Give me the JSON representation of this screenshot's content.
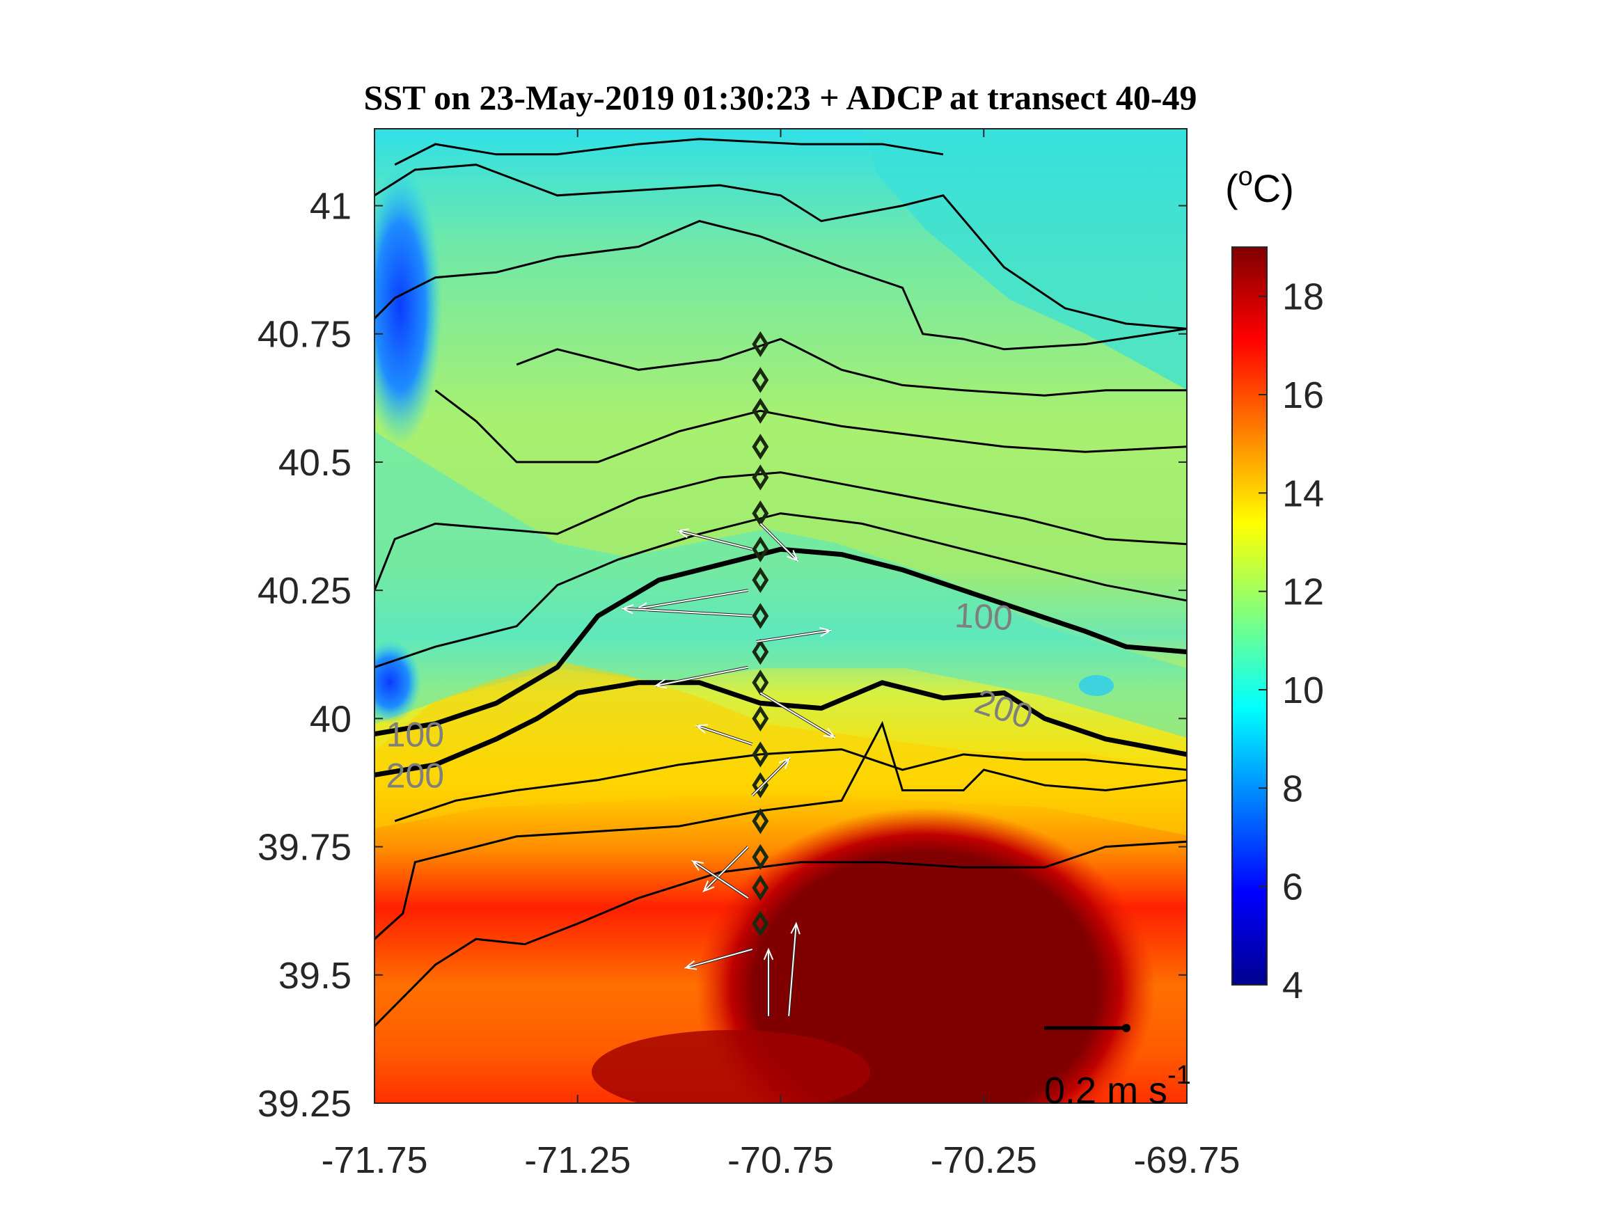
{
  "chart_data": {
    "type": "heatmap",
    "title": "SST on 23-May-2019 01:30:23 + ADCP at transect 40-49",
    "xlim": [
      -71.75,
      -69.75
    ],
    "ylim": [
      39.25,
      41.15
    ],
    "x_ticks": [
      "-71.75",
      "-71.25",
      "-70.75",
      "-70.25",
      "-69.75"
    ],
    "x_tick_values": [
      -71.75,
      -71.25,
      -70.75,
      -70.25,
      -69.75
    ],
    "y_ticks": [
      "39.25",
      "39.5",
      "39.75",
      "40",
      "40.25",
      "40.5",
      "40.75",
      "41"
    ],
    "y_tick_values": [
      39.25,
      39.5,
      39.75,
      40.0,
      40.25,
      40.5,
      40.75,
      41.0
    ],
    "colorbar": {
      "unit_label": "(",
      "unit_sup": "o",
      "unit_end": "C)",
      "clim": [
        4,
        19
      ],
      "ticks": [
        "4",
        "6",
        "8",
        "10",
        "12",
        "14",
        "16",
        "18"
      ],
      "tick_values": [
        4,
        6,
        8,
        10,
        12,
        14,
        16,
        18
      ],
      "colormap": "jet"
    },
    "bathymetry_contours": [
      {
        "label": "100",
        "points": [
          [
            -71.75,
            39.97
          ],
          [
            -71.6,
            39.99
          ],
          [
            -71.45,
            40.03
          ],
          [
            -71.3,
            40.1
          ],
          [
            -71.2,
            40.2
          ],
          [
            -71.05,
            40.27
          ],
          [
            -70.9,
            40.3
          ],
          [
            -70.75,
            40.33
          ],
          [
            -70.6,
            40.32
          ],
          [
            -70.45,
            40.29
          ],
          [
            -70.3,
            40.25
          ],
          [
            -70.15,
            40.21
          ],
          [
            -70.0,
            40.17
          ],
          [
            -69.9,
            40.14
          ],
          [
            -69.75,
            40.13
          ]
        ],
        "label_at": [
          -71.65,
          39.97
        ],
        "label2": "100",
        "label2_at": [
          -70.25,
          40.2
        ]
      },
      {
        "label": "200",
        "points": [
          [
            -71.75,
            39.89
          ],
          [
            -71.6,
            39.91
          ],
          [
            -71.45,
            39.96
          ],
          [
            -71.35,
            40.0
          ],
          [
            -71.25,
            40.05
          ],
          [
            -71.1,
            40.07
          ],
          [
            -70.95,
            40.07
          ],
          [
            -70.8,
            40.03
          ],
          [
            -70.65,
            40.02
          ],
          [
            -70.5,
            40.07
          ],
          [
            -70.35,
            40.04
          ],
          [
            -70.2,
            40.05
          ],
          [
            -70.1,
            40.0
          ],
          [
            -69.95,
            39.96
          ],
          [
            -69.75,
            39.93
          ]
        ],
        "label_at": [
          -71.65,
          39.89
        ],
        "label2": "200",
        "label2_at": [
          -70.2,
          40.02
        ]
      }
    ],
    "sst_contours": [
      [
        [
          -71.75,
          39.4
        ],
        [
          -71.6,
          39.52
        ],
        [
          -71.5,
          39.57
        ],
        [
          -71.38,
          39.56
        ],
        [
          -71.25,
          39.6
        ],
        [
          -71.1,
          39.65
        ],
        [
          -70.9,
          39.7
        ],
        [
          -70.7,
          39.72
        ],
        [
          -70.5,
          39.72
        ],
        [
          -70.3,
          39.71
        ],
        [
          -70.1,
          39.71
        ],
        [
          -69.95,
          39.75
        ],
        [
          -69.75,
          39.76
        ]
      ],
      [
        [
          -71.75,
          39.57
        ],
        [
          -71.68,
          39.62
        ],
        [
          -71.65,
          39.72
        ],
        [
          -71.55,
          39.74
        ],
        [
          -71.4,
          39.77
        ],
        [
          -71.2,
          39.78
        ],
        [
          -71.0,
          39.79
        ],
        [
          -70.8,
          39.82
        ],
        [
          -70.6,
          39.84
        ],
        [
          -70.5,
          39.99
        ],
        [
          -70.45,
          39.86
        ],
        [
          -70.3,
          39.86
        ],
        [
          -70.25,
          39.9
        ],
        [
          -70.1,
          39.87
        ],
        [
          -69.95,
          39.86
        ],
        [
          -69.75,
          39.88
        ]
      ],
      [
        [
          -71.7,
          39.8
        ],
        [
          -71.55,
          39.84
        ],
        [
          -71.4,
          39.86
        ],
        [
          -71.2,
          39.88
        ],
        [
          -71.0,
          39.91
        ],
        [
          -70.8,
          39.93
        ],
        [
          -70.6,
          39.94
        ],
        [
          -70.45,
          39.9
        ],
        [
          -70.3,
          39.93
        ],
        [
          -70.15,
          39.92
        ],
        [
          -70.0,
          39.92
        ],
        [
          -69.75,
          39.9
        ]
      ],
      [
        [
          -71.75,
          40.1
        ],
        [
          -71.6,
          40.14
        ],
        [
          -71.5,
          40.16
        ],
        [
          -71.4,
          40.18
        ],
        [
          -71.3,
          40.26
        ],
        [
          -71.15,
          40.31
        ],
        [
          -70.95,
          40.36
        ],
        [
          -70.75,
          40.4
        ],
        [
          -70.55,
          40.38
        ],
        [
          -70.35,
          40.34
        ],
        [
          -70.15,
          40.3
        ],
        [
          -69.95,
          40.26
        ],
        [
          -69.75,
          40.23
        ]
      ],
      [
        [
          -71.75,
          40.25
        ],
        [
          -71.7,
          40.35
        ],
        [
          -71.6,
          40.38
        ],
        [
          -71.45,
          40.37
        ],
        [
          -71.3,
          40.36
        ],
        [
          -71.1,
          40.43
        ],
        [
          -70.9,
          40.47
        ],
        [
          -70.75,
          40.48
        ],
        [
          -70.55,
          40.45
        ],
        [
          -70.35,
          40.42
        ],
        [
          -70.15,
          40.39
        ],
        [
          -69.95,
          40.35
        ],
        [
          -69.75,
          40.34
        ]
      ],
      [
        [
          -71.6,
          40.64
        ],
        [
          -71.5,
          40.58
        ],
        [
          -71.4,
          40.5
        ],
        [
          -71.2,
          40.5
        ],
        [
          -71.0,
          40.56
        ],
        [
          -70.8,
          40.6
        ],
        [
          -70.6,
          40.57
        ],
        [
          -70.4,
          40.55
        ],
        [
          -70.2,
          40.53
        ],
        [
          -70.0,
          40.52
        ],
        [
          -69.75,
          40.53
        ]
      ],
      [
        [
          -71.4,
          40.69
        ],
        [
          -71.3,
          40.72
        ],
        [
          -71.1,
          40.68
        ],
        [
          -70.9,
          40.7
        ],
        [
          -70.75,
          40.74
        ],
        [
          -70.6,
          40.68
        ],
        [
          -70.45,
          40.65
        ],
        [
          -70.3,
          40.64
        ],
        [
          -70.1,
          40.63
        ],
        [
          -69.95,
          40.64
        ],
        [
          -69.75,
          40.64
        ]
      ],
      [
        [
          -71.75,
          40.78
        ],
        [
          -71.7,
          40.82
        ],
        [
          -71.6,
          40.86
        ],
        [
          -71.45,
          40.87
        ],
        [
          -71.3,
          40.9
        ],
        [
          -71.1,
          40.92
        ],
        [
          -70.95,
          40.97
        ],
        [
          -70.8,
          40.94
        ],
        [
          -70.6,
          40.88
        ],
        [
          -70.45,
          40.84
        ],
        [
          -70.4,
          40.75
        ],
        [
          -70.3,
          40.74
        ],
        [
          -70.2,
          40.72
        ],
        [
          -70.0,
          40.73
        ],
        [
          -69.75,
          40.76
        ]
      ],
      [
        [
          -71.75,
          41.02
        ],
        [
          -71.65,
          41.07
        ],
        [
          -71.5,
          41.08
        ],
        [
          -71.3,
          41.02
        ],
        [
          -71.1,
          41.03
        ],
        [
          -70.9,
          41.04
        ],
        [
          -70.75,
          41.02
        ],
        [
          -70.65,
          40.97
        ],
        [
          -70.45,
          41.0
        ],
        [
          -70.35,
          41.02
        ],
        [
          -70.2,
          40.88
        ],
        [
          -70.05,
          40.8
        ],
        [
          -69.9,
          40.77
        ],
        [
          -69.75,
          40.76
        ]
      ],
      [
        [
          -71.7,
          41.08
        ],
        [
          -71.6,
          41.12
        ],
        [
          -71.45,
          41.1
        ],
        [
          -71.3,
          41.1
        ],
        [
          -71.1,
          41.12
        ],
        [
          -70.95,
          41.13
        ],
        [
          -70.7,
          41.12
        ],
        [
          -70.5,
          41.12
        ],
        [
          -70.35,
          41.1
        ]
      ]
    ],
    "stations": [
      {
        "lon": -70.8,
        "lat": 40.73
      },
      {
        "lon": -70.8,
        "lat": 40.66
      },
      {
        "lon": -70.8,
        "lat": 40.6
      },
      {
        "lon": -70.8,
        "lat": 40.53
      },
      {
        "lon": -70.8,
        "lat": 40.47
      },
      {
        "lon": -70.8,
        "lat": 40.4
      },
      {
        "lon": -70.8,
        "lat": 40.33
      },
      {
        "lon": -70.8,
        "lat": 40.27
      },
      {
        "lon": -70.8,
        "lat": 40.2
      },
      {
        "lon": -70.8,
        "lat": 40.13
      },
      {
        "lon": -70.8,
        "lat": 40.07
      },
      {
        "lon": -70.8,
        "lat": 40.0
      },
      {
        "lon": -70.8,
        "lat": 39.93
      },
      {
        "lon": -70.8,
        "lat": 39.87
      },
      {
        "lon": -70.8,
        "lat": 39.8
      },
      {
        "lon": -70.8,
        "lat": 39.73
      },
      {
        "lon": -70.8,
        "lat": 39.67
      },
      {
        "lon": -70.8,
        "lat": 39.6
      }
    ],
    "adcp_vectors_sample": [
      {
        "lon": -70.8,
        "lat": 40.38,
        "u": 0.1,
        "v": -0.1
      },
      {
        "lon": -70.82,
        "lat": 40.33,
        "u": -0.2,
        "v": 0.05
      },
      {
        "lon": -70.83,
        "lat": 40.25,
        "u": -0.3,
        "v": -0.05
      },
      {
        "lon": -70.82,
        "lat": 40.2,
        "u": -0.35,
        "v": 0.02
      },
      {
        "lon": -70.81,
        "lat": 40.15,
        "u": 0.2,
        "v": 0.03
      },
      {
        "lon": -70.83,
        "lat": 40.1,
        "u": -0.25,
        "v": -0.05
      },
      {
        "lon": -70.8,
        "lat": 40.05,
        "u": 0.2,
        "v": -0.12
      },
      {
        "lon": -70.82,
        "lat": 39.95,
        "u": -0.15,
        "v": 0.05
      },
      {
        "lon": -70.82,
        "lat": 39.85,
        "u": 0.1,
        "v": 0.1
      },
      {
        "lon": -70.83,
        "lat": 39.75,
        "u": -0.12,
        "v": -0.12
      },
      {
        "lon": -70.83,
        "lat": 39.65,
        "u": -0.15,
        "v": 0.1
      },
      {
        "lon": -70.82,
        "lat": 39.55,
        "u": -0.18,
        "v": -0.05
      },
      {
        "lon": -70.78,
        "lat": 39.42,
        "u": 0.0,
        "v": 0.18
      },
      {
        "lon": -70.73,
        "lat": 39.42,
        "u": 0.02,
        "v": 0.25
      }
    ],
    "scale_arrow": {
      "magnitude_label": "0.2 m s",
      "magnitude_sup": "-1",
      "value": 0.2
    }
  }
}
